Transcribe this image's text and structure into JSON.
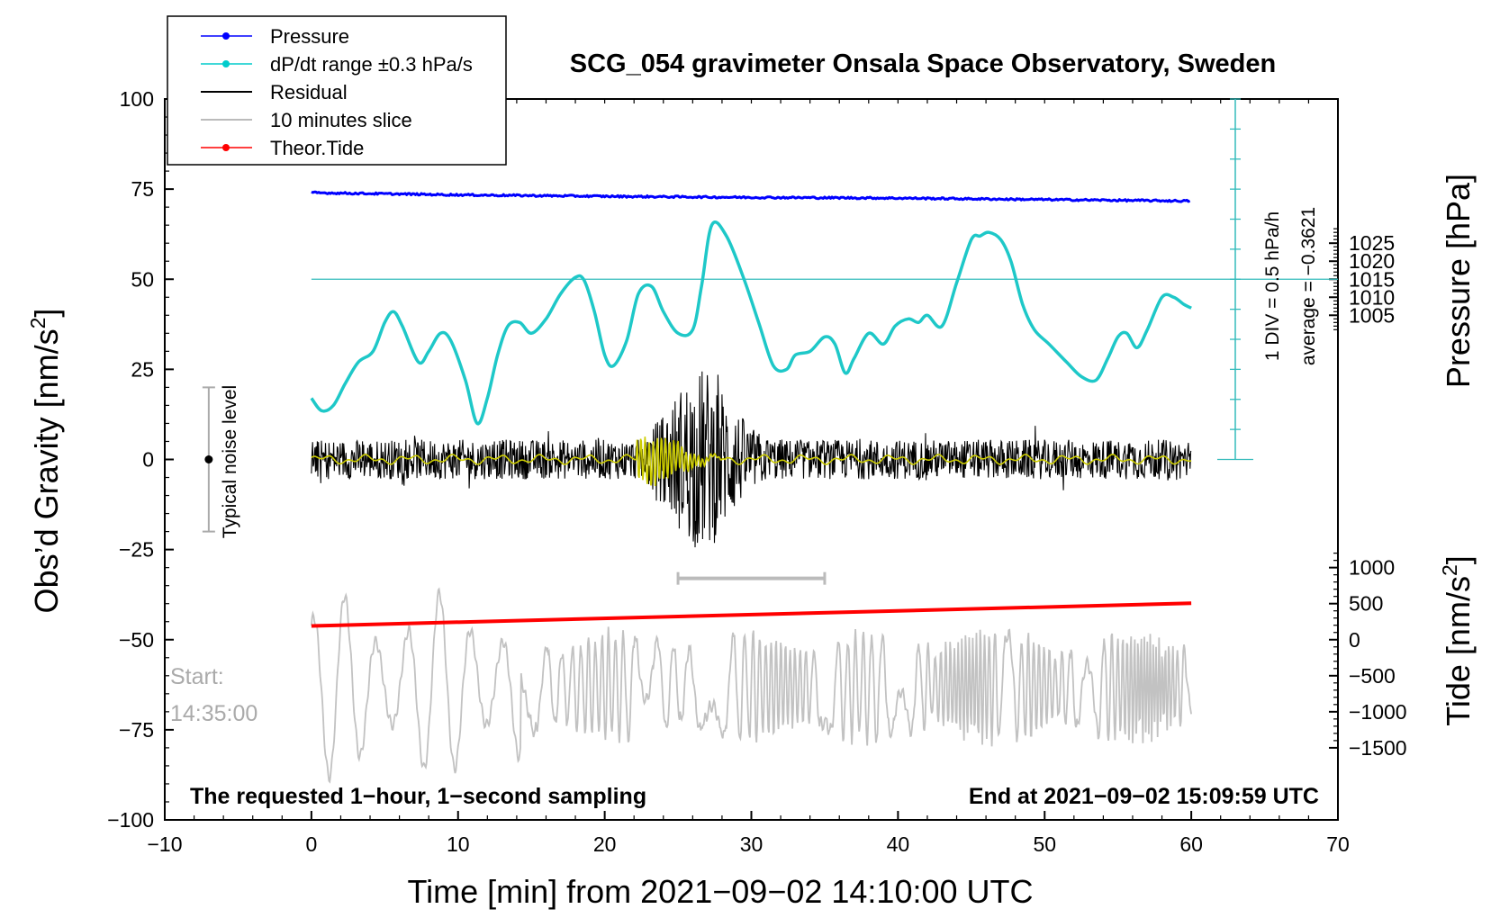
{
  "chart_data": {
    "type": "line",
    "title": "SCG_054 gravimeter Onsala Space Observatory, Sweden",
    "xlabel": "Time [min] from 2021−09−02 14:10:00 UTC",
    "ylabel_left": "Obs’d Gravity [nm/s",
    "ylabel_left_sup": "2",
    "ylabel_left_end": "]",
    "ylabel_right_top": "Pressure [hPa]",
    "ylabel_right_bottom": "Tide [nm/s",
    "ylabel_right_bottom_sup": "2",
    "ylabel_right_bottom_end": "]",
    "xlim": [
      -10,
      70
    ],
    "ylim": [
      -100,
      100
    ],
    "x_ticks": [
      -10,
      0,
      10,
      20,
      30,
      40,
      50,
      60,
      70
    ],
    "x_tick_labels": [
      "−10",
      "0",
      "10",
      "20",
      "30",
      "40",
      "50",
      "60",
      "70"
    ],
    "y_ticks": [
      -100,
      -75,
      -50,
      -25,
      0,
      25,
      50,
      75,
      100
    ],
    "y_tick_labels": [
      "−100",
      "−75",
      "−50",
      "−25",
      "0",
      "25",
      "50",
      "75",
      "100"
    ],
    "pressure_axis": {
      "ticks": [
        1005,
        1010,
        1015,
        1020,
        1025
      ],
      "tick_labels": [
        "1005",
        "1010",
        "1015",
        "1020",
        "1025"
      ],
      "ref_value": 1015,
      "ref_gravity": 50,
      "gravity_per_hPa": 1.0
    },
    "tide_axis": {
      "ticks": [
        -1500,
        -1000,
        -500,
        0,
        500,
        1000
      ],
      "tick_labels": [
        "−1500",
        "−1000",
        "−500",
        "0",
        "500",
        "1000"
      ],
      "ref_value": 0,
      "ref_gravity": -50,
      "gravity_per_unit": 0.02
    },
    "legend": {
      "placement": "top-left",
      "entries": [
        {
          "label": "Pressure",
          "color": "#0000ff",
          "marker": true
        },
        {
          "label": "dP/dt range ±0.3 hPa/s",
          "color": "#00cccc",
          "marker": true
        },
        {
          "label": "Residual",
          "color": "#000000",
          "marker": false
        },
        {
          "label": "10 minutes slice",
          "color": "#bbbbbb",
          "marker": false
        },
        {
          "label": "Theor.Tide",
          "color": "#ff0000",
          "marker": true
        }
      ]
    },
    "dpdt_scale": {
      "label1": "1 DIV = 0.5 hPa/h",
      "label2": "average = −0.3621",
      "x": 63,
      "y_from": 0,
      "y_to": 100,
      "div_gravity": 8.333,
      "zero_line_gravity": 50
    },
    "noise_bar": {
      "label": "Typical noise level",
      "x": -7,
      "center": 0,
      "low": -20,
      "high": 20
    },
    "slice_marker": {
      "x_from": 25,
      "x_to": 35,
      "y": -33
    },
    "annotations": {
      "start_label": "Start:",
      "start_time": "14:35:00",
      "bottom_left": "The requested 1−hour, 1−second sampling",
      "bottom_right": "End at 2021−09−02 15:09:59 UTC"
    },
    "series": [
      {
        "name": "Pressure",
        "color": "#0000ff",
        "x": [
          0,
          10,
          20,
          30,
          40,
          50,
          60
        ],
        "values": [
          74.0,
          73.4,
          73.0,
          72.7,
          72.5,
          72.1,
          71.7
        ]
      },
      {
        "name": "dP/dt",
        "color": "#1ec8c8",
        "x": [
          0,
          0.7,
          1.5,
          2.3,
          3.2,
          4.2,
          5.0,
          5.6,
          6.2,
          7.3,
          8.0,
          8.8,
          9.5,
          10.5,
          11.3,
          12.0,
          12.7,
          13.4,
          14.2,
          15.0,
          16.0,
          17.0,
          18.0,
          18.6,
          19.3,
          20.0,
          20.6,
          21.5,
          22.3,
          23.2,
          24.0,
          25.0,
          26.0,
          26.6,
          27.3,
          28.3,
          29.5,
          30.5,
          31.5,
          32.4,
          33.0,
          34.0,
          35.0,
          35.7,
          36.4,
          37.0,
          38.0,
          39.0,
          39.8,
          40.7,
          41.4,
          42.0,
          43.0,
          44.0,
          45.0,
          45.6,
          46.2,
          47.0,
          47.7,
          48.5,
          49.3,
          50.3,
          51.5,
          52.5,
          53.5,
          54.3,
          55.0,
          55.6,
          56.3,
          57.0,
          58.0,
          58.8,
          59.5,
          60.0
        ],
        "values": [
          17,
          13.5,
          15,
          21,
          27,
          30,
          38,
          41,
          37,
          27,
          30,
          35,
          33,
          22,
          10,
          17,
          29,
          37,
          38,
          35,
          39,
          46,
          50.5,
          49.7,
          41,
          29,
          26,
          33,
          46,
          48,
          41,
          35,
          36,
          48,
          65,
          62,
          50,
          38,
          26,
          25,
          29,
          30,
          34,
          32,
          24,
          28,
          35,
          32,
          37,
          39,
          38,
          40,
          37,
          49,
          61,
          62,
          63,
          61,
          55,
          43,
          36,
          32,
          27,
          23,
          22,
          28,
          34,
          35,
          31,
          36,
          45,
          45,
          43,
          42
        ]
      },
      {
        "name": "Theor.Tide",
        "color": "#ff0000",
        "x": [
          0,
          60
        ],
        "values": [
          -46.2,
          -39.9
        ]
      }
    ]
  }
}
